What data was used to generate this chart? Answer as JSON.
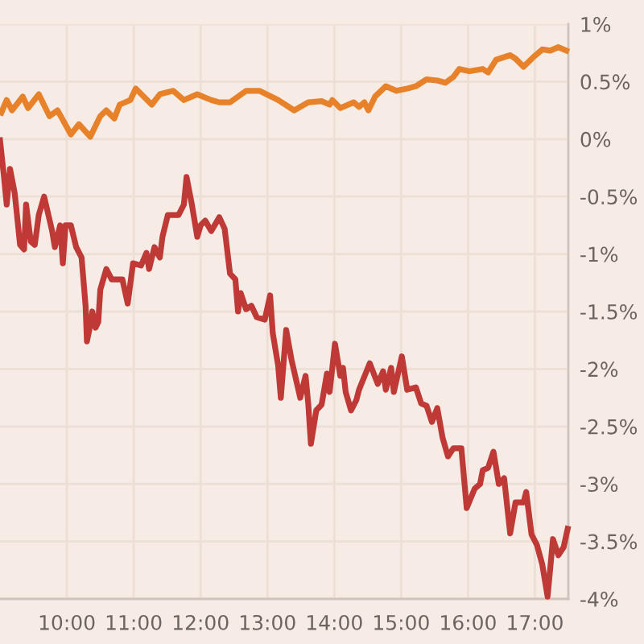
{
  "chart_data": {
    "type": "line",
    "xlim": [
      9,
      17.5
    ],
    "xticks": [
      {
        "value": 10,
        "label": "10:00"
      },
      {
        "value": 11,
        "label": "11:00"
      },
      {
        "value": 12,
        "label": "12:00"
      },
      {
        "value": 13,
        "label": "13:00"
      },
      {
        "value": 14,
        "label": "14:00"
      },
      {
        "value": 15,
        "label": "15:00"
      },
      {
        "value": 16,
        "label": "16:00"
      },
      {
        "value": 17,
        "label": "17:00"
      }
    ],
    "ylim": [
      -4,
      1
    ],
    "yticks": [
      {
        "value": 1,
        "label": "1%"
      },
      {
        "value": 0.5,
        "label": "0.5%"
      },
      {
        "value": 0,
        "label": "0%"
      },
      {
        "value": -0.5,
        "label": "-0.5%"
      },
      {
        "value": -1,
        "label": "-1%"
      },
      {
        "value": -1.5,
        "label": "-1.5%"
      },
      {
        "value": -2,
        "label": "-2%"
      },
      {
        "value": -2.5,
        "label": "-2.5%"
      },
      {
        "value": -3,
        "label": "-3%"
      },
      {
        "value": -3.5,
        "label": "-3.5%"
      },
      {
        "value": -4,
        "label": "-4%"
      }
    ],
    "grid": true,
    "line_style": "solid",
    "series": [
      {
        "color": "#e8822a",
        "x": [
          9.02,
          9.1,
          9.18,
          9.34,
          9.42,
          9.58,
          9.74,
          9.86,
          10.06,
          10.18,
          10.35,
          10.5,
          10.59,
          10.71,
          10.79,
          10.95,
          11.03,
          11.15,
          11.27,
          11.39,
          11.59,
          11.75,
          11.95,
          12.16,
          12.28,
          12.44,
          12.68,
          12.88,
          13.16,
          13.4,
          13.61,
          13.81,
          13.93,
          13.97,
          14.09,
          14.29,
          14.37,
          14.45,
          14.51,
          14.61,
          14.77,
          14.93,
          15.09,
          15.22,
          15.38,
          15.54,
          15.66,
          15.78,
          15.87,
          16.02,
          16.22,
          16.3,
          16.42,
          16.63,
          16.71,
          16.83,
          16.99,
          17.11,
          17.23,
          17.35,
          17.47
        ],
        "values": [
          0.23,
          0.34,
          0.25,
          0.37,
          0.27,
          0.39,
          0.2,
          0.25,
          0.04,
          0.13,
          0.02,
          0.2,
          0.25,
          0.18,
          0.3,
          0.34,
          0.44,
          0.37,
          0.3,
          0.39,
          0.42,
          0.34,
          0.39,
          0.34,
          0.32,
          0.32,
          0.42,
          0.42,
          0.34,
          0.25,
          0.32,
          0.33,
          0.3,
          0.34,
          0.27,
          0.32,
          0.28,
          0.32,
          0.25,
          0.37,
          0.46,
          0.42,
          0.44,
          0.46,
          0.52,
          0.51,
          0.49,
          0.54,
          0.61,
          0.59,
          0.61,
          0.58,
          0.69,
          0.73,
          0.7,
          0.63,
          0.72,
          0.78,
          0.77,
          0.8,
          0.77
        ]
      },
      {
        "color": "#bf3a36",
        "x": [
          9.0,
          9.06,
          9.1,
          9.15,
          9.22,
          9.3,
          9.36,
          9.39,
          9.46,
          9.52,
          9.58,
          9.66,
          9.78,
          9.82,
          9.9,
          9.94,
          9.98,
          10.06,
          10.14,
          10.22,
          10.28,
          10.3,
          10.35,
          10.38,
          10.43,
          10.47,
          10.5,
          10.59,
          10.67,
          10.83,
          10.91,
          10.99,
          11.11,
          11.19,
          11.23,
          11.31,
          11.39,
          11.43,
          11.51,
          11.67,
          11.75,
          11.79,
          11.87,
          11.95,
          12.0,
          12.07,
          12.16,
          12.28,
          12.36,
          12.44,
          12.52,
          12.56,
          12.6,
          12.68,
          12.76,
          12.84,
          12.96,
          13.04,
          13.08,
          13.16,
          13.2,
          13.28,
          13.36,
          13.49,
          13.57,
          13.61,
          13.65,
          13.73,
          13.81,
          13.89,
          13.93,
          14.01,
          14.09,
          14.13,
          14.17,
          14.25,
          14.33,
          14.37,
          14.53,
          14.65,
          14.73,
          14.77,
          14.85,
          14.89,
          15.01,
          15.09,
          15.22,
          15.3,
          15.38,
          15.46,
          15.54,
          15.62,
          15.7,
          15.78,
          15.9,
          15.98,
          16.1,
          16.18,
          16.22,
          16.3,
          16.38,
          16.46,
          16.54,
          16.63,
          16.71,
          16.83,
          16.87,
          16.95,
          17.03,
          17.11,
          17.19,
          17.27,
          17.35,
          17.43,
          17.49
        ],
        "values": [
          -0.01,
          -0.33,
          -0.57,
          -0.26,
          -0.47,
          -0.92,
          -0.96,
          -0.57,
          -0.89,
          -0.92,
          -0.66,
          -0.5,
          -0.8,
          -0.94,
          -0.75,
          -1.08,
          -0.75,
          -0.75,
          -0.94,
          -1.03,
          -1.45,
          -1.76,
          -1.62,
          -1.5,
          -1.64,
          -1.59,
          -1.31,
          -1.13,
          -1.22,
          -1.22,
          -1.43,
          -1.08,
          -1.1,
          -0.99,
          -1.13,
          -0.94,
          -1.03,
          -0.85,
          -0.66,
          -0.66,
          -0.57,
          -0.33,
          -0.57,
          -0.85,
          -0.75,
          -0.71,
          -0.8,
          -0.68,
          -0.78,
          -1.17,
          -1.22,
          -1.5,
          -1.34,
          -1.48,
          -1.45,
          -1.55,
          -1.57,
          -1.36,
          -1.69,
          -1.97,
          -2.25,
          -1.66,
          -1.92,
          -2.25,
          -2.06,
          -2.3,
          -2.65,
          -2.36,
          -2.31,
          -2.04,
          -2.2,
          -1.78,
          -2.06,
          -1.99,
          -2.2,
          -2.36,
          -2.27,
          -2.18,
          -1.95,
          -2.13,
          -2.02,
          -2.18,
          -1.99,
          -2.2,
          -1.89,
          -2.18,
          -2.16,
          -2.3,
          -2.32,
          -2.46,
          -2.34,
          -2.6,
          -2.76,
          -2.69,
          -2.69,
          -3.21,
          -3.04,
          -3.0,
          -2.88,
          -2.86,
          -2.72,
          -3.0,
          -2.95,
          -3.43,
          -3.16,
          -3.16,
          -3.07,
          -3.44,
          -3.53,
          -3.7,
          -3.98,
          -3.48,
          -3.62,
          -3.55,
          -3.39
        ]
      }
    ]
  }
}
